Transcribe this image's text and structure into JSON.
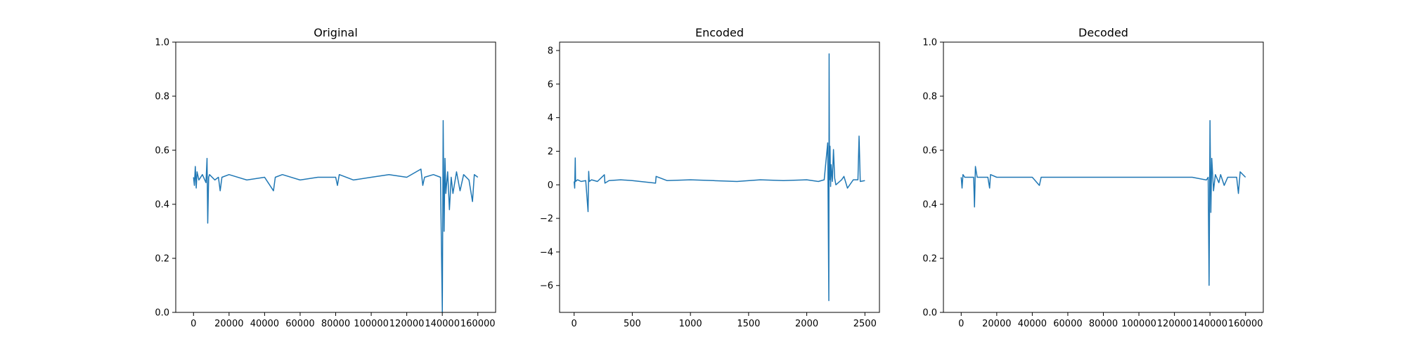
{
  "chart_data": [
    {
      "type": "line",
      "title": "Original",
      "xlabel": "",
      "ylabel": "",
      "xlim": [
        -10000,
        170000
      ],
      "ylim": [
        0.0,
        1.0
      ],
      "xticks": [
        0,
        20000,
        40000,
        60000,
        80000,
        100000,
        120000,
        140000,
        160000
      ],
      "yticks": [
        0.0,
        0.2,
        0.4,
        0.6,
        0.8,
        1.0
      ],
      "xtick_labels": [
        "0",
        "20000",
        "40000",
        "60000",
        "80000",
        "100000",
        "120000",
        "140000",
        "160000"
      ],
      "ytick_labels": [
        "0.0",
        "0.2",
        "0.4",
        "0.6",
        "0.8",
        "1.0"
      ],
      "color": "#1f77b4",
      "grid": false,
      "series": [
        {
          "x": [
            0,
            500,
            1000,
            1500,
            2000,
            3000,
            5000,
            7000,
            7600,
            8000,
            8500,
            9000,
            12000,
            14000,
            15000,
            16000,
            20000,
            30000,
            40000,
            45000,
            46000,
            50000,
            60000,
            70000,
            80000,
            81000,
            82000,
            90000,
            100000,
            110000,
            120000,
            128000,
            129000,
            130000,
            135000,
            139000,
            140000,
            140500,
            141000,
            141500,
            142000,
            143000,
            144000,
            145000,
            146000,
            148000,
            150000,
            152000,
            155000,
            157000,
            158000,
            160000
          ],
          "y": [
            0.5,
            0.47,
            0.54,
            0.46,
            0.52,
            0.49,
            0.51,
            0.48,
            0.57,
            0.33,
            0.5,
            0.51,
            0.49,
            0.5,
            0.45,
            0.5,
            0.51,
            0.49,
            0.5,
            0.45,
            0.5,
            0.51,
            0.49,
            0.5,
            0.5,
            0.47,
            0.51,
            0.49,
            0.5,
            0.51,
            0.5,
            0.53,
            0.47,
            0.5,
            0.51,
            0.5,
            0.0,
            0.71,
            0.3,
            0.57,
            0.44,
            0.52,
            0.38,
            0.5,
            0.44,
            0.52,
            0.45,
            0.51,
            0.49,
            0.41,
            0.51,
            0.5
          ]
        }
      ]
    },
    {
      "type": "line",
      "title": "Encoded",
      "xlabel": "",
      "ylabel": "",
      "xlim": [
        -125,
        2625
      ],
      "ylim": [
        -7.6,
        8.5
      ],
      "xticks": [
        0,
        500,
        1000,
        1500,
        2000,
        2500
      ],
      "yticks": [
        -6,
        -4,
        -2,
        0,
        2,
        4,
        6,
        8
      ],
      "xtick_labels": [
        "0",
        "500",
        "1000",
        "1500",
        "2000",
        "2500"
      ],
      "ytick_labels": [
        "−6",
        "−4",
        "−2",
        "0",
        "2",
        "4",
        "6",
        "8"
      ],
      "color": "#1f77b4",
      "grid": false,
      "series": [
        {
          "x": [
            0,
            5,
            10,
            12,
            30,
            60,
            100,
            120,
            125,
            130,
            150,
            200,
            260,
            265,
            300,
            400,
            500,
            700,
            705,
            800,
            1000,
            1200,
            1400,
            1600,
            1800,
            2000,
            2100,
            2150,
            2180,
            2190,
            2192,
            2195,
            2200,
            2205,
            2210,
            2220,
            2230,
            2240,
            2250,
            2300,
            2320,
            2350,
            2400,
            2440,
            2450,
            2460,
            2500
          ],
          "y": [
            0.2,
            -0.2,
            1.6,
            0.2,
            0.3,
            0.2,
            0.25,
            -1.6,
            0.8,
            0.2,
            0.3,
            0.2,
            0.6,
            0.1,
            0.25,
            0.3,
            0.25,
            0.1,
            0.5,
            0.25,
            0.3,
            0.25,
            0.2,
            0.3,
            0.25,
            0.3,
            0.2,
            0.3,
            2.5,
            -6.9,
            7.8,
            0.3,
            2.3,
            -0.1,
            1.2,
            0.2,
            2.1,
            0.4,
            0.0,
            0.3,
            0.5,
            -0.2,
            0.3,
            0.3,
            2.9,
            0.2,
            0.25
          ]
        }
      ]
    },
    {
      "type": "line",
      "title": "Decoded",
      "xlabel": "",
      "ylabel": "",
      "xlim": [
        -10000,
        170000
      ],
      "ylim": [
        0.0,
        1.0
      ],
      "xticks": [
        0,
        20000,
        40000,
        60000,
        80000,
        100000,
        120000,
        140000,
        160000
      ],
      "yticks": [
        0.0,
        0.2,
        0.4,
        0.6,
        0.8,
        1.0
      ],
      "xtick_labels": [
        "0",
        "20000",
        "40000",
        "60000",
        "80000",
        "100000",
        "120000",
        "140000",
        "160000"
      ],
      "ytick_labels": [
        "0.0",
        "0.2",
        "0.4",
        "0.6",
        "0.8",
        "1.0"
      ],
      "color": "#1f77b4",
      "grid": false,
      "series": [
        {
          "x": [
            0,
            500,
            1000,
            2000,
            5000,
            7000,
            7500,
            8000,
            9000,
            15000,
            16000,
            16500,
            20000,
            40000,
            44000,
            45000,
            60000,
            80000,
            100000,
            120000,
            130000,
            138000,
            139000,
            139500,
            140000,
            140500,
            141000,
            142000,
            143000,
            145000,
            146000,
            148000,
            150000,
            155000,
            156000,
            157000,
            160000
          ],
          "y": [
            0.5,
            0.46,
            0.51,
            0.5,
            0.5,
            0.5,
            0.39,
            0.54,
            0.5,
            0.5,
            0.46,
            0.51,
            0.5,
            0.5,
            0.47,
            0.5,
            0.5,
            0.5,
            0.5,
            0.5,
            0.5,
            0.49,
            0.5,
            0.1,
            0.71,
            0.37,
            0.57,
            0.45,
            0.51,
            0.48,
            0.51,
            0.47,
            0.5,
            0.5,
            0.44,
            0.52,
            0.5
          ]
        }
      ]
    }
  ]
}
